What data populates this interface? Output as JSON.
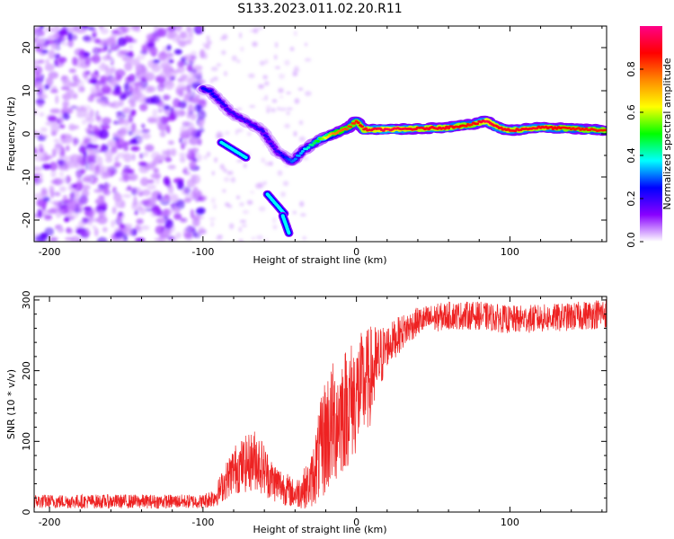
{
  "title": "S133.2023.011.02.20.R11",
  "chart_data": [
    {
      "type": "heatmap",
      "xlabel": "Height of straight line (km)",
      "ylabel": "Frequency (Hz)",
      "xlim": [
        -210,
        163
      ],
      "ylim": [
        -25,
        25
      ],
      "xticks": [
        -200,
        -100,
        0,
        100
      ],
      "yticks": [
        -20,
        -10,
        0,
        10,
        20
      ],
      "colorbar": {
        "label": "Normalized spectral amplitude",
        "range": [
          0,
          1
        ],
        "ticks": [
          "0.0",
          "0.2",
          "0.4",
          "0.6",
          "0.8"
        ],
        "tick_values": [
          0.0,
          0.2,
          0.4,
          0.6,
          0.8
        ],
        "colors": [
          "#ffffff",
          "#8800ff",
          "#0000ff",
          "#00ffff",
          "#00ff00",
          "#ffff00",
          "#ff8800",
          "#ff0000",
          "#ff0088"
        ]
      },
      "noise_region_x": [
        -210,
        -100
      ],
      "track": [
        {
          "x": -100,
          "f": 10.5,
          "amp": 0.25
        },
        {
          "x": -95,
          "f": 9.8,
          "amp": 0.25
        },
        {
          "x": -82,
          "f": 5.0,
          "amp": 0.2
        },
        {
          "x": -70,
          "f": 2.5,
          "amp": 0.2
        },
        {
          "x": -62,
          "f": 1.0,
          "amp": 0.22
        },
        {
          "x": -52,
          "f": -4.0,
          "amp": 0.2
        },
        {
          "x": -42,
          "f": -6.5,
          "amp": 0.3
        },
        {
          "x": -35,
          "f": -4.0,
          "amp": 0.35
        },
        {
          "x": -25,
          "f": -1.5,
          "amp": 0.5
        },
        {
          "x": -15,
          "f": 0.0,
          "amp": 0.75
        },
        {
          "x": -5,
          "f": 1.5,
          "amp": 0.8
        },
        {
          "x": 0,
          "f": 3.0,
          "amp": 0.85
        },
        {
          "x": 5,
          "f": 1.0,
          "amp": 0.9
        },
        {
          "x": 20,
          "f": 1.0,
          "amp": 0.95
        },
        {
          "x": 40,
          "f": 1.2,
          "amp": 0.9
        },
        {
          "x": 60,
          "f": 1.5,
          "amp": 0.9
        },
        {
          "x": 75,
          "f": 2.2,
          "amp": 0.85
        },
        {
          "x": 85,
          "f": 3.0,
          "amp": 0.95
        },
        {
          "x": 92,
          "f": 1.5,
          "amp": 0.9
        },
        {
          "x": 100,
          "f": 0.8,
          "amp": 0.9
        },
        {
          "x": 120,
          "f": 1.5,
          "amp": 0.9
        },
        {
          "x": 140,
          "f": 1.2,
          "amp": 0.85
        },
        {
          "x": 163,
          "f": 0.8,
          "amp": 0.85
        }
      ],
      "branches": [
        {
          "x0": -88,
          "f0": -2.0,
          "x1": -72,
          "f1": -5.5
        },
        {
          "x0": -58,
          "f0": -14.0,
          "x1": -47,
          "f1": -18.5
        },
        {
          "x0": -48,
          "f0": -19.0,
          "x1": -44,
          "f1": -23.0
        }
      ]
    },
    {
      "type": "line",
      "xlabel": "Height of straight line (km)",
      "ylabel": "SNR (10 * v/v)",
      "xlim": [
        -210,
        163
      ],
      "ylim": [
        0,
        305
      ],
      "xticks": [
        -200,
        -100,
        0,
        100
      ],
      "yticks": [
        0,
        100,
        200,
        300
      ],
      "color": "#ee2222",
      "envelope": [
        {
          "x": -210,
          "mean": 15,
          "noise": 10
        },
        {
          "x": -100,
          "mean": 15,
          "noise": 10
        },
        {
          "x": -92,
          "mean": 22,
          "noise": 15
        },
        {
          "x": -80,
          "mean": 60,
          "noise": 35
        },
        {
          "x": -65,
          "mean": 75,
          "noise": 45
        },
        {
          "x": -55,
          "mean": 45,
          "noise": 30
        },
        {
          "x": -40,
          "mean": 25,
          "noise": 20
        },
        {
          "x": -30,
          "mean": 40,
          "noise": 35
        },
        {
          "x": -20,
          "mean": 110,
          "noise": 90
        },
        {
          "x": -10,
          "mean": 140,
          "noise": 90
        },
        {
          "x": 0,
          "mean": 165,
          "noise": 85
        },
        {
          "x": 10,
          "mean": 195,
          "noise": 70
        },
        {
          "x": 20,
          "mean": 235,
          "noise": 30
        },
        {
          "x": 30,
          "mean": 255,
          "noise": 25
        },
        {
          "x": 40,
          "mean": 270,
          "noise": 20
        },
        {
          "x": 60,
          "mean": 278,
          "noise": 20
        },
        {
          "x": 80,
          "mean": 278,
          "noise": 20
        },
        {
          "x": 100,
          "mean": 272,
          "noise": 20
        },
        {
          "x": 120,
          "mean": 274,
          "noise": 20
        },
        {
          "x": 140,
          "mean": 276,
          "noise": 20
        },
        {
          "x": 163,
          "mean": 282,
          "noise": 22
        }
      ]
    }
  ]
}
